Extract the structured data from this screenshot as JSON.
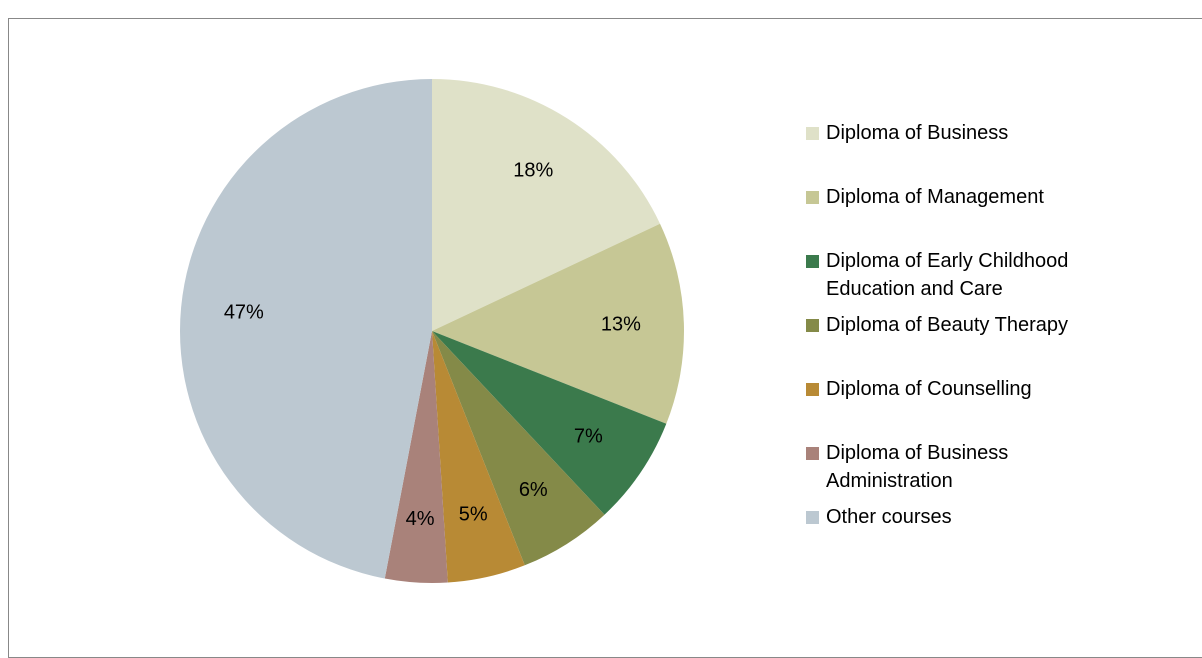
{
  "chart_data": {
    "type": "pie",
    "categories": [
      "Diploma of Business",
      "Diploma of Management",
      "Diploma of Early Childhood Education and Care",
      "Diploma of Beauty Therapy",
      "Diploma of Counselling",
      "Diploma of Business Administration",
      "Other courses"
    ],
    "values": [
      18,
      13,
      7,
      6,
      5,
      4,
      47
    ],
    "value_labels": [
      "18%",
      "13%",
      "7%",
      "6%",
      "5%",
      "4%",
      "47%"
    ],
    "colors": [
      "#dfe1c8",
      "#c6c795",
      "#3b7a4c",
      "#848a48",
      "#b88a35",
      "#a9827a",
      "#bcc8d1"
    ],
    "legend": "right"
  }
}
